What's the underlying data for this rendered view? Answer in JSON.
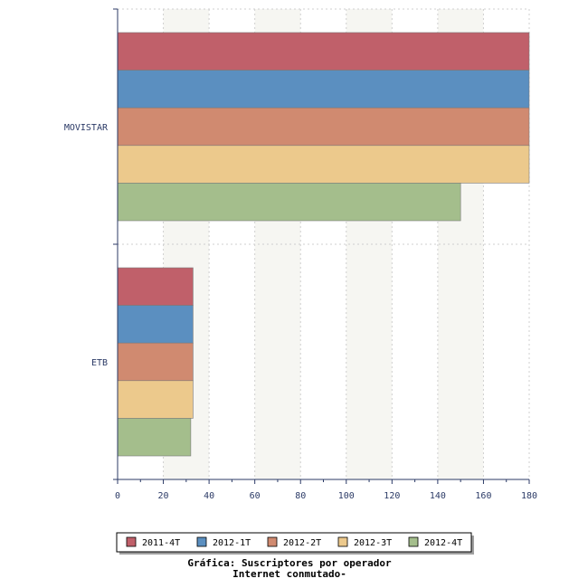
{
  "chart_data": {
    "type": "bar",
    "orientation": "horizontal",
    "categories": [
      "MOVISTAR",
      "ETB"
    ],
    "series": [
      {
        "name": "2011-4T",
        "color": "#c0606a",
        "values": [
          180,
          33
        ]
      },
      {
        "name": "2012-1T",
        "color": "#5b8fc0",
        "values": [
          180,
          33
        ]
      },
      {
        "name": "2012-2T",
        "color": "#d08a70",
        "values": [
          180,
          33
        ]
      },
      {
        "name": "2012-3T",
        "color": "#ecc98c",
        "values": [
          180,
          33
        ]
      },
      {
        "name": "2012-4T",
        "color": "#a4be8c",
        "values": [
          150,
          32
        ]
      }
    ],
    "xlim": [
      0,
      180
    ],
    "xticks": [
      0,
      20,
      40,
      60,
      80,
      100,
      120,
      140,
      160,
      180
    ],
    "grid": true,
    "legend_position": "bottom",
    "caption_line1": "Gráfica: Suscriptores por operador",
    "caption_line2": "Internet conmutado-"
  }
}
